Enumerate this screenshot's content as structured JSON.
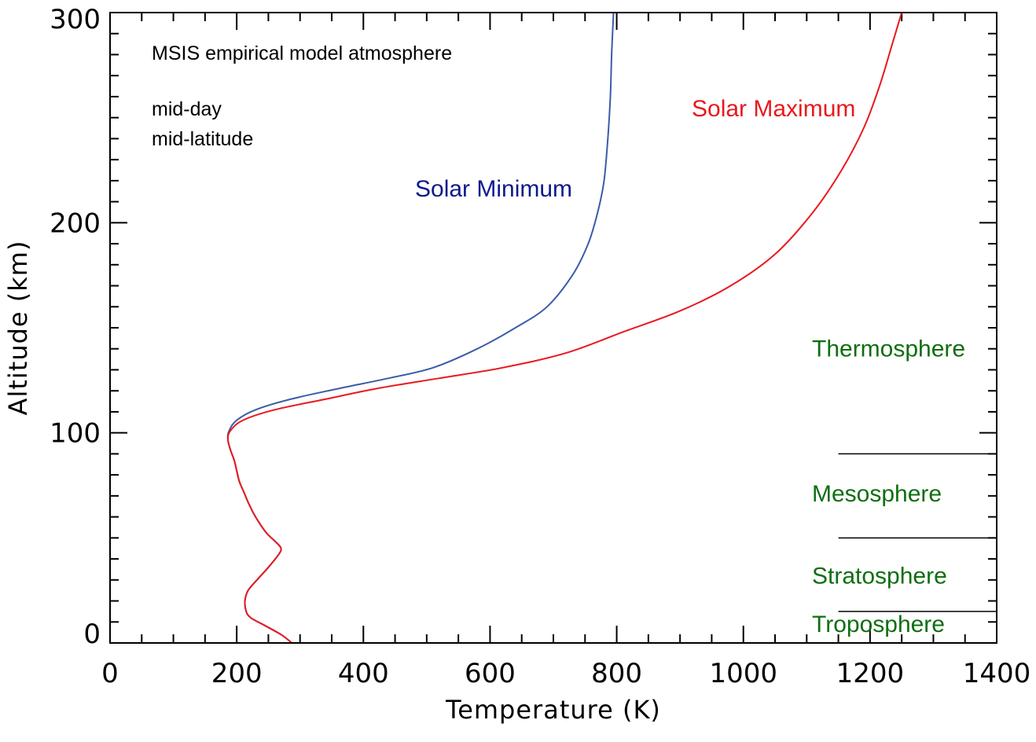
{
  "chart_data": {
    "type": "line",
    "xlabel": "Temperature (K)",
    "ylabel": "Altitude (km)",
    "xlim": [
      0,
      1400
    ],
    "ylim": [
      0,
      300
    ],
    "x_ticks": [
      0,
      200,
      400,
      600,
      800,
      1000,
      1200,
      1400
    ],
    "y_ticks": [
      0,
      100,
      200,
      300
    ],
    "x_minor_step": 50,
    "y_minor_step": 10,
    "grid": false,
    "annotations": {
      "title_lines": [
        "MSIS empirical model atmosphere",
        "mid-day",
        "mid-latitude"
      ]
    },
    "series": [
      {
        "name": "Solar Minimum",
        "color": "#3a5ca8",
        "label_color": "#0b1a8c",
        "points": [
          [
            287,
            0
          ],
          [
            270,
            4
          ],
          [
            240,
            9
          ],
          [
            222,
            12
          ],
          [
            215,
            15
          ],
          [
            213,
            20
          ],
          [
            218,
            25
          ],
          [
            232,
            30
          ],
          [
            250,
            36
          ],
          [
            266,
            42
          ],
          [
            270,
            45
          ],
          [
            262,
            48
          ],
          [
            248,
            52
          ],
          [
            236,
            57
          ],
          [
            226,
            62
          ],
          [
            218,
            67
          ],
          [
            211,
            72
          ],
          [
            204,
            77
          ],
          [
            200,
            82
          ],
          [
            196,
            87
          ],
          [
            190,
            92
          ],
          [
            186,
            97
          ],
          [
            188,
            101
          ],
          [
            200,
            106
          ],
          [
            230,
            111
          ],
          [
            285,
            116
          ],
          [
            360,
            121
          ],
          [
            440,
            126
          ],
          [
            510,
            131
          ],
          [
            580,
            140
          ],
          [
            640,
            150
          ],
          [
            690,
            160
          ],
          [
            730,
            175
          ],
          [
            755,
            190
          ],
          [
            770,
            205
          ],
          [
            780,
            220
          ],
          [
            786,
            240
          ],
          [
            790,
            260
          ],
          [
            792,
            280
          ],
          [
            795,
            300
          ]
        ]
      },
      {
        "name": "Solar Maximum",
        "color": "#e8191e",
        "label_color": "#e8191e",
        "points": [
          [
            287,
            0
          ],
          [
            270,
            4
          ],
          [
            240,
            9
          ],
          [
            222,
            12
          ],
          [
            215,
            15
          ],
          [
            213,
            20
          ],
          [
            218,
            25
          ],
          [
            232,
            30
          ],
          [
            250,
            36
          ],
          [
            266,
            42
          ],
          [
            270,
            45
          ],
          [
            262,
            48
          ],
          [
            248,
            52
          ],
          [
            236,
            57
          ],
          [
            226,
            62
          ],
          [
            218,
            67
          ],
          [
            211,
            72
          ],
          [
            204,
            77
          ],
          [
            200,
            82
          ],
          [
            196,
            87
          ],
          [
            190,
            92
          ],
          [
            186,
            97
          ],
          [
            190,
            101
          ],
          [
            210,
            106
          ],
          [
            260,
            111
          ],
          [
            340,
            116
          ],
          [
            420,
            121
          ],
          [
            520,
            126
          ],
          [
            620,
            131
          ],
          [
            720,
            138
          ],
          [
            810,
            148
          ],
          [
            900,
            158
          ],
          [
            980,
            170
          ],
          [
            1050,
            185
          ],
          [
            1110,
            205
          ],
          [
            1155,
            225
          ],
          [
            1190,
            245
          ],
          [
            1215,
            265
          ],
          [
            1235,
            285
          ],
          [
            1250,
            300
          ]
        ]
      }
    ],
    "regions": {
      "color": "#0f6e12",
      "labels": [
        {
          "text": "Thermosphere",
          "altitude": 140
        },
        {
          "text": "Mesosphere",
          "altitude": 71
        },
        {
          "text": "Stratosphere",
          "altitude": 32
        },
        {
          "text": "Troposphere",
          "altitude": 9
        }
      ],
      "boundaries": [
        {
          "altitude": 90,
          "from_temperature": 1150
        },
        {
          "altitude": 50,
          "from_temperature": 1150
        },
        {
          "altitude": 15,
          "from_temperature": 1150
        }
      ]
    }
  }
}
